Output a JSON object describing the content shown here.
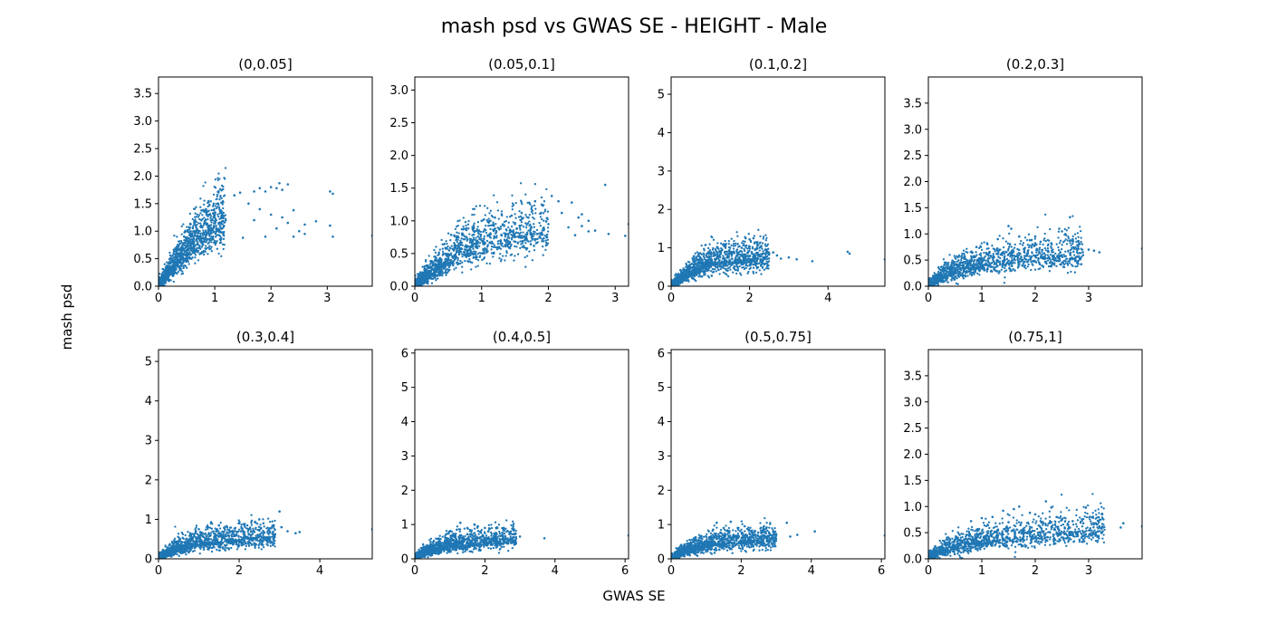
{
  "figure": {
    "title": "mash psd vs GWAS SE - HEIGHT - Male",
    "xlabel": "GWAS SE",
    "ylabel": "mash psd",
    "point_color": "#1f77b4"
  },
  "chart_data": [
    {
      "type": "scatter",
      "title": "(0,0.05]",
      "xlim": [
        0,
        3.8
      ],
      "ylim": [
        0,
        3.8
      ],
      "xticks": [
        0,
        1,
        2,
        3
      ],
      "yticks": [
        0.0,
        0.5,
        1.0,
        1.5,
        2.0,
        2.5,
        3.0,
        3.5
      ],
      "ytick_labels": [
        "0.0",
        "0.5",
        "1.0",
        "1.5",
        "2.0",
        "2.5",
        "3.0",
        "3.5"
      ],
      "trend": [
        [
          0,
          0
        ],
        [
          0.2,
          0.28
        ],
        [
          0.4,
          0.55
        ],
        [
          0.6,
          0.78
        ],
        [
          0.8,
          0.98
        ],
        [
          1.0,
          1.12
        ],
        [
          1.2,
          1.22
        ]
      ],
      "points": [
        [
          1.35,
          1.65
        ],
        [
          1.45,
          1.7
        ],
        [
          1.7,
          1.72
        ],
        [
          1.8,
          1.78
        ],
        [
          1.9,
          1.72
        ],
        [
          2.0,
          1.8
        ],
        [
          2.1,
          1.78
        ],
        [
          2.15,
          1.87
        ],
        [
          2.2,
          1.75
        ],
        [
          2.3,
          1.85
        ],
        [
          2.4,
          1.38
        ],
        [
          1.6,
          1.5
        ],
        [
          1.8,
          1.4
        ],
        [
          2.0,
          1.3
        ],
        [
          2.2,
          1.25
        ],
        [
          2.3,
          1.15
        ],
        [
          2.5,
          1.0
        ],
        [
          2.6,
          1.12
        ],
        [
          1.9,
          0.9
        ],
        [
          2.1,
          1.05
        ],
        [
          2.4,
          0.9
        ],
        [
          2.6,
          0.95
        ],
        [
          2.8,
          1.18
        ],
        [
          3.05,
          1.72
        ],
        [
          3.1,
          1.68
        ],
        [
          3.05,
          1.1
        ],
        [
          3.1,
          0.9
        ],
        [
          3.8,
          0.92
        ],
        [
          1.5,
          0.88
        ],
        [
          1.7,
          1.2
        ]
      ]
    },
    {
      "type": "scatter",
      "title": "(0.05,0.1]",
      "xlim": [
        0,
        3.2
      ],
      "ylim": [
        0,
        3.2
      ],
      "xticks": [
        0,
        1,
        2,
        3
      ],
      "yticks": [
        0.0,
        0.5,
        1.0,
        1.5,
        2.0,
        2.5,
        3.0
      ],
      "ytick_labels": [
        "0.0",
        "0.5",
        "1.0",
        "1.5",
        "2.0",
        "2.5",
        "3.0"
      ],
      "trend": [
        [
          0,
          0
        ],
        [
          0.25,
          0.22
        ],
        [
          0.5,
          0.42
        ],
        [
          0.75,
          0.57
        ],
        [
          1.0,
          0.68
        ],
        [
          1.3,
          0.75
        ],
        [
          1.6,
          0.8
        ],
        [
          2.0,
          0.85
        ]
      ],
      "points": [
        [
          1.0,
          1.0
        ],
        [
          1.2,
          1.05
        ],
        [
          1.3,
          1.1
        ],
        [
          1.45,
          1.08
        ],
        [
          1.6,
          1.12
        ],
        [
          1.7,
          1.05
        ],
        [
          1.8,
          1.3
        ],
        [
          1.9,
          1.25
        ],
        [
          2.05,
          1.38
        ],
        [
          2.15,
          1.3
        ],
        [
          2.2,
          1.12
        ],
        [
          2.35,
          1.28
        ],
        [
          2.45,
          1.05
        ],
        [
          2.5,
          1.1
        ],
        [
          2.6,
          1.0
        ],
        [
          2.3,
          0.9
        ],
        [
          2.5,
          0.92
        ],
        [
          2.7,
          0.85
        ],
        [
          2.85,
          1.55
        ],
        [
          2.9,
          0.8
        ],
        [
          3.2,
          0.95
        ],
        [
          3.15,
          0.77
        ],
        [
          2.4,
          0.78
        ],
        [
          2.6,
          0.84
        ],
        [
          1.8,
          0.72
        ],
        [
          2.0,
          0.95
        ],
        [
          1.5,
          0.95
        ]
      ]
    },
    {
      "type": "scatter",
      "title": "(0.1,0.2]",
      "xlim": [
        0,
        5.45
      ],
      "ylim": [
        0,
        5.45
      ],
      "xticks": [
        0,
        2,
        4
      ],
      "yticks": [
        0,
        1,
        2,
        3,
        4,
        5
      ],
      "ytick_labels": [
        "0",
        "1",
        "2",
        "3",
        "4",
        "5"
      ],
      "trend": [
        [
          0,
          0
        ],
        [
          0.3,
          0.25
        ],
        [
          0.6,
          0.45
        ],
        [
          1.0,
          0.6
        ],
        [
          1.5,
          0.68
        ],
        [
          2.0,
          0.72
        ],
        [
          2.5,
          0.74
        ]
      ],
      "points": [
        [
          1.3,
          0.95
        ],
        [
          1.5,
          1.0
        ],
        [
          1.7,
          1.1
        ],
        [
          1.9,
          1.25
        ],
        [
          2.0,
          1.22
        ],
        [
          2.1,
          1.25
        ],
        [
          2.2,
          1.15
        ],
        [
          1.8,
          1.0
        ],
        [
          2.3,
          1.05
        ],
        [
          2.4,
          0.95
        ],
        [
          2.5,
          0.85
        ],
        [
          2.6,
          0.88
        ],
        [
          2.7,
          0.8
        ],
        [
          2.8,
          0.72
        ],
        [
          3.0,
          0.75
        ],
        [
          3.2,
          0.7
        ],
        [
          3.6,
          0.65
        ],
        [
          4.5,
          0.9
        ],
        [
          4.55,
          0.85
        ],
        [
          5.45,
          0.7
        ],
        [
          2.2,
          0.85
        ],
        [
          1.6,
          0.9
        ]
      ]
    },
    {
      "type": "scatter",
      "title": "(0.2,0.3]",
      "xlim": [
        0,
        4.0
      ],
      "ylim": [
        0,
        4.0
      ],
      "xticks": [
        0,
        1,
        2,
        3
      ],
      "yticks": [
        0.0,
        0.5,
        1.0,
        1.5,
        2.0,
        2.5,
        3.0,
        3.5
      ],
      "ytick_labels": [
        "0.0",
        "0.5",
        "1.0",
        "1.5",
        "2.0",
        "2.5",
        "3.0",
        "3.5"
      ],
      "trend": [
        [
          0,
          0
        ],
        [
          0.3,
          0.22
        ],
        [
          0.6,
          0.35
        ],
        [
          1.0,
          0.43
        ],
        [
          1.5,
          0.5
        ],
        [
          2.0,
          0.55
        ],
        [
          2.5,
          0.6
        ],
        [
          2.9,
          0.62
        ]
      ],
      "points": [
        [
          0.9,
          0.75
        ],
        [
          1.1,
          0.82
        ],
        [
          1.3,
          0.9
        ],
        [
          1.5,
          1.15
        ],
        [
          1.55,
          1.1
        ],
        [
          1.7,
          0.95
        ],
        [
          1.9,
          0.88
        ],
        [
          2.0,
          0.95
        ],
        [
          2.1,
          0.85
        ],
        [
          2.3,
          0.82
        ],
        [
          2.45,
          1.1
        ],
        [
          2.5,
          1.05
        ],
        [
          2.65,
          1.32
        ],
        [
          2.7,
          0.9
        ],
        [
          2.8,
          0.78
        ],
        [
          3.0,
          0.7
        ],
        [
          3.1,
          0.68
        ],
        [
          3.2,
          0.65
        ],
        [
          4.0,
          0.72
        ],
        [
          1.8,
          0.72
        ]
      ]
    },
    {
      "type": "scatter",
      "title": "(0.3,0.4]",
      "xlim": [
        0,
        5.3
      ],
      "ylim": [
        0,
        5.3
      ],
      "xticks": [
        0,
        2,
        4
      ],
      "yticks": [
        0,
        1,
        2,
        3,
        4,
        5
      ],
      "ytick_labels": [
        "0",
        "1",
        "2",
        "3",
        "4",
        "5"
      ],
      "trend": [
        [
          0,
          0
        ],
        [
          0.3,
          0.2
        ],
        [
          0.6,
          0.32
        ],
        [
          1.0,
          0.4
        ],
        [
          1.5,
          0.47
        ],
        [
          2.0,
          0.52
        ],
        [
          2.5,
          0.55
        ],
        [
          2.9,
          0.58
        ]
      ],
      "points": [
        [
          1.0,
          0.75
        ],
        [
          1.2,
          0.8
        ],
        [
          1.3,
          0.9
        ],
        [
          1.5,
          0.85
        ],
        [
          1.7,
          0.8
        ],
        [
          2.0,
          0.9
        ],
        [
          2.2,
          0.85
        ],
        [
          2.5,
          1.0
        ],
        [
          2.6,
          0.9
        ],
        [
          2.8,
          0.78
        ],
        [
          3.0,
          1.2
        ],
        [
          3.05,
          0.8
        ],
        [
          3.2,
          0.7
        ],
        [
          3.4,
          0.65
        ],
        [
          3.5,
          0.68
        ],
        [
          5.3,
          0.75
        ],
        [
          1.9,
          0.7
        ]
      ]
    },
    {
      "type": "scatter",
      "title": "(0.4,0.5]",
      "xlim": [
        0,
        6.1
      ],
      "ylim": [
        0,
        6.1
      ],
      "xticks": [
        0,
        2,
        4,
        6
      ],
      "yticks": [
        0,
        1,
        2,
        3,
        4,
        5,
        6
      ],
      "ytick_labels": [
        "0",
        "1",
        "2",
        "3",
        "4",
        "5",
        "6"
      ],
      "trend": [
        [
          0,
          0
        ],
        [
          0.3,
          0.2
        ],
        [
          0.6,
          0.32
        ],
        [
          1.0,
          0.4
        ],
        [
          1.5,
          0.47
        ],
        [
          2.0,
          0.52
        ],
        [
          2.5,
          0.56
        ],
        [
          2.9,
          0.6
        ]
      ],
      "points": [
        [
          1.0,
          0.8
        ],
        [
          1.2,
          0.85
        ],
        [
          1.5,
          0.9
        ],
        [
          1.7,
          1.0
        ],
        [
          1.8,
          0.95
        ],
        [
          2.0,
          0.9
        ],
        [
          2.1,
          0.8
        ],
        [
          2.3,
          0.75
        ],
        [
          2.5,
          0.75
        ],
        [
          2.7,
          0.72
        ],
        [
          3.0,
          0.65
        ],
        [
          3.7,
          0.6
        ],
        [
          6.1,
          0.68
        ],
        [
          1.3,
          1.05
        ]
      ]
    },
    {
      "type": "scatter",
      "title": "(0.5,0.75]",
      "xlim": [
        0,
        6.1
      ],
      "ylim": [
        0,
        6.1
      ],
      "xticks": [
        0,
        2,
        4,
        6
      ],
      "yticks": [
        0,
        1,
        2,
        3,
        4,
        5,
        6
      ],
      "ytick_labels": [
        "0",
        "1",
        "2",
        "3",
        "4",
        "5",
        "6"
      ],
      "trend": [
        [
          0,
          0
        ],
        [
          0.3,
          0.2
        ],
        [
          0.6,
          0.32
        ],
        [
          1.0,
          0.4
        ],
        [
          1.5,
          0.47
        ],
        [
          2.0,
          0.52
        ],
        [
          2.5,
          0.56
        ],
        [
          3.0,
          0.6
        ]
      ],
      "points": [
        [
          1.2,
          0.85
        ],
        [
          1.3,
          1.05
        ],
        [
          1.5,
          0.9
        ],
        [
          1.7,
          1.08
        ],
        [
          1.9,
          0.9
        ],
        [
          2.1,
          0.95
        ],
        [
          2.3,
          0.8
        ],
        [
          2.6,
          0.82
        ],
        [
          2.8,
          0.75
        ],
        [
          3.0,
          0.72
        ],
        [
          3.3,
          1.05
        ],
        [
          3.4,
          0.65
        ],
        [
          3.6,
          0.7
        ],
        [
          4.1,
          0.8
        ],
        [
          6.1,
          0.68
        ]
      ]
    },
    {
      "type": "scatter",
      "title": "(0.75,1]",
      "xlim": [
        0,
        4.0
      ],
      "ylim": [
        0,
        4.0
      ],
      "xticks": [
        0,
        1,
        2,
        3
      ],
      "yticks": [
        0.0,
        0.5,
        1.0,
        1.5,
        2.0,
        2.5,
        3.0,
        3.5
      ],
      "ytick_labels": [
        "0.0",
        "0.5",
        "1.0",
        "1.5",
        "2.0",
        "2.5",
        "3.0",
        "3.5"
      ],
      "trend": [
        [
          0,
          0
        ],
        [
          0.3,
          0.18
        ],
        [
          0.6,
          0.27
        ],
        [
          1.0,
          0.34
        ],
        [
          1.5,
          0.4
        ],
        [
          2.0,
          0.45
        ],
        [
          2.5,
          0.5
        ],
        [
          3.0,
          0.55
        ],
        [
          3.3,
          0.58
        ]
      ],
      "points": [
        [
          0.8,
          0.72
        ],
        [
          1.0,
          0.78
        ],
        [
          1.2,
          0.8
        ],
        [
          1.4,
          0.92
        ],
        [
          1.6,
          0.95
        ],
        [
          1.7,
          1.0
        ],
        [
          1.9,
          0.88
        ],
        [
          2.0,
          0.85
        ],
        [
          2.2,
          1.1
        ],
        [
          2.3,
          0.98
        ],
        [
          2.4,
          0.8
        ],
        [
          2.5,
          0.75
        ],
        [
          2.7,
          0.72
        ],
        [
          2.9,
          0.68
        ],
        [
          3.2,
          0.62
        ],
        [
          3.6,
          0.6
        ],
        [
          3.65,
          0.68
        ],
        [
          4.0,
          0.62
        ],
        [
          1.5,
          0.7
        ],
        [
          2.1,
          0.72
        ]
      ]
    }
  ]
}
